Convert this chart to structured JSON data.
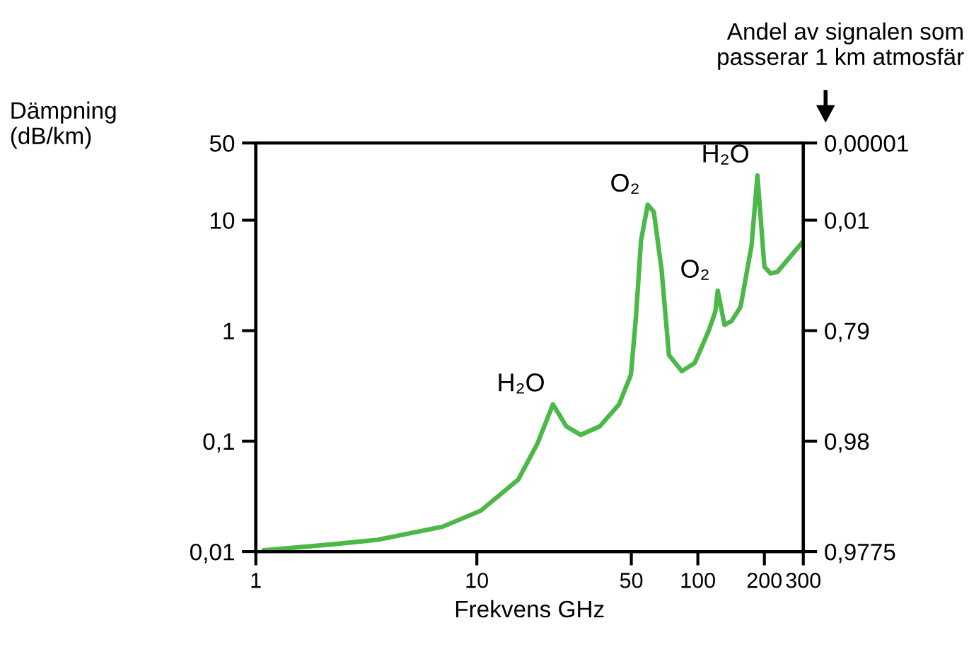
{
  "chart_data": {
    "type": "line",
    "xlabel": "Frekvens GHz",
    "ylabel": "Dämpning\n(dB/km)",
    "y2label": "Andel av signalen som\npasserar 1 km atmosfär",
    "x": [
      1.09,
      2.19,
      3.56,
      7.0,
      10.4,
      15.4,
      18.8,
      22.1,
      25.4,
      29.5,
      36,
      44,
      49.8,
      52.5,
      55.3,
      59.3,
      63.2,
      68.5,
      74,
      84.7,
      96.8,
      112,
      120,
      123,
      132,
      142,
      156,
      175,
      186,
      200,
      213,
      229,
      295
    ],
    "series": [
      {
        "color": "#4cb848",
        "values": [
          0.0103,
          0.0116,
          0.0128,
          0.0168,
          0.0234,
          0.0449,
          0.095,
          0.215,
          0.136,
          0.114,
          0.136,
          0.215,
          0.4,
          1.35,
          6.5,
          13.8,
          11.9,
          3.6,
          0.6,
          0.43,
          0.51,
          1.0,
          1.49,
          2.3,
          1.13,
          1.22,
          1.64,
          5.9,
          25.4,
          3.8,
          3.3,
          3.4,
          6.2
        ]
      }
    ],
    "log": "xy",
    "xlim": [
      1,
      300
    ],
    "xticks": [
      1,
      10,
      50,
      100,
      200,
      300
    ],
    "ylim": [
      0.01,
      50
    ],
    "yticks": [
      50,
      10,
      1,
      {
        "value": 0.1,
        "label": "0,1"
      },
      {
        "value": 0.01,
        "label": "0,01"
      }
    ],
    "annotations": [
      {
        "text": "H₂O",
        "x": 22.1,
        "y": 0.215
      },
      {
        "text": "O₂",
        "x": 59.3,
        "y": 13.8
      },
      {
        "text": "O₂",
        "x": 123,
        "y": 2.3
      },
      {
        "text": "H₂O",
        "x": 186,
        "y": 25.4
      },
      "0,00001",
      "0,01",
      "0,79",
      "0,98",
      "0,9775"
    ],
    "marker": "none",
    "line_style": "solid"
  }
}
